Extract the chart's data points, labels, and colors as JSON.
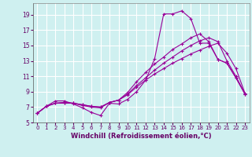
{
  "background_color": "#cff0f0",
  "line_color": "#990099",
  "grid_color": "#ffffff",
  "xlabel": "Windchill (Refroidissement éolien,°C)",
  "xlabel_color": "#660066",
  "tick_color": "#660066",
  "ylim": [
    5,
    20.5
  ],
  "xlim": [
    -0.5,
    23.5
  ],
  "yticks": [
    5,
    7,
    9,
    11,
    13,
    15,
    17,
    19
  ],
  "xticks": [
    0,
    1,
    2,
    3,
    4,
    5,
    6,
    7,
    8,
    9,
    10,
    11,
    12,
    13,
    14,
    15,
    16,
    17,
    18,
    19,
    20,
    21,
    22,
    23
  ],
  "series": [
    [
      6.2,
      7.1,
      7.8,
      7.8,
      7.4,
      6.9,
      6.3,
      5.9,
      7.5,
      7.4,
      8.0,
      9.0,
      10.5,
      13.3,
      19.1,
      19.1,
      19.5,
      18.5,
      15.3,
      15.3,
      13.2,
      12.7,
      10.8,
      8.7
    ],
    [
      6.2,
      7.1,
      7.5,
      7.5,
      7.5,
      7.2,
      7.0,
      6.9,
      7.6,
      7.9,
      8.9,
      10.3,
      11.5,
      12.6,
      13.5,
      14.5,
      15.2,
      16.0,
      16.5,
      15.5,
      13.2,
      12.7,
      10.8,
      8.7
    ],
    [
      6.2,
      7.1,
      7.5,
      7.6,
      7.5,
      7.3,
      7.1,
      7.0,
      7.6,
      7.9,
      8.7,
      9.8,
      10.8,
      11.8,
      12.7,
      13.5,
      14.3,
      15.0,
      15.6,
      16.0,
      15.5,
      13.0,
      11.0,
      8.7
    ],
    [
      6.2,
      7.1,
      7.5,
      7.6,
      7.5,
      7.3,
      7.1,
      7.0,
      7.6,
      7.9,
      8.6,
      9.6,
      10.5,
      11.3,
      12.0,
      12.7,
      13.3,
      13.9,
      14.4,
      14.9,
      15.3,
      14.0,
      12.0,
      8.8
    ]
  ]
}
